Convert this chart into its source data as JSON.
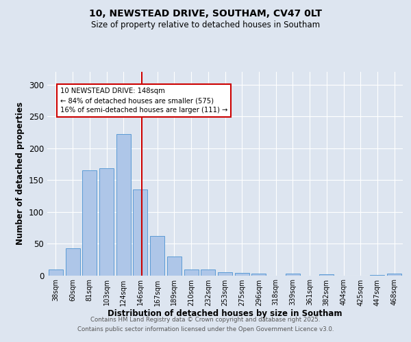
{
  "title_line1": "10, NEWSTEAD DRIVE, SOUTHAM, CV47 0LT",
  "title_line2": "Size of property relative to detached houses in Southam",
  "xlabel": "Distribution of detached houses by size in Southam",
  "ylabel": "Number of detached properties",
  "bar_categories": [
    "38sqm",
    "60sqm",
    "81sqm",
    "103sqm",
    "124sqm",
    "146sqm",
    "167sqm",
    "189sqm",
    "210sqm",
    "232sqm",
    "253sqm",
    "275sqm",
    "296sqm",
    "318sqm",
    "339sqm",
    "361sqm",
    "382sqm",
    "404sqm",
    "425sqm",
    "447sqm",
    "468sqm"
  ],
  "bar_values": [
    9,
    42,
    165,
    168,
    222,
    135,
    62,
    30,
    9,
    9,
    5,
    4,
    3,
    0,
    3,
    0,
    2,
    0,
    0,
    1,
    3
  ],
  "bar_color": "#aec6e8",
  "bar_edgecolor": "#5b9bd5",
  "vline_color": "#cc0000",
  "annotation_text": "10 NEWSTEAD DRIVE: 148sqm\n← 84% of detached houses are smaller (575)\n16% of semi-detached houses are larger (111) →",
  "annotation_box_color": "#ffffff",
  "annotation_box_edgecolor": "#cc0000",
  "bg_color": "#dde5f0",
  "plot_bg_color": "#dde5f0",
  "yticks": [
    0,
    50,
    100,
    150,
    200,
    250,
    300
  ],
  "ylim": [
    0,
    320
  ],
  "footer_line1": "Contains HM Land Registry data © Crown copyright and database right 2025.",
  "footer_line2": "Contains public sector information licensed under the Open Government Licence v3.0."
}
